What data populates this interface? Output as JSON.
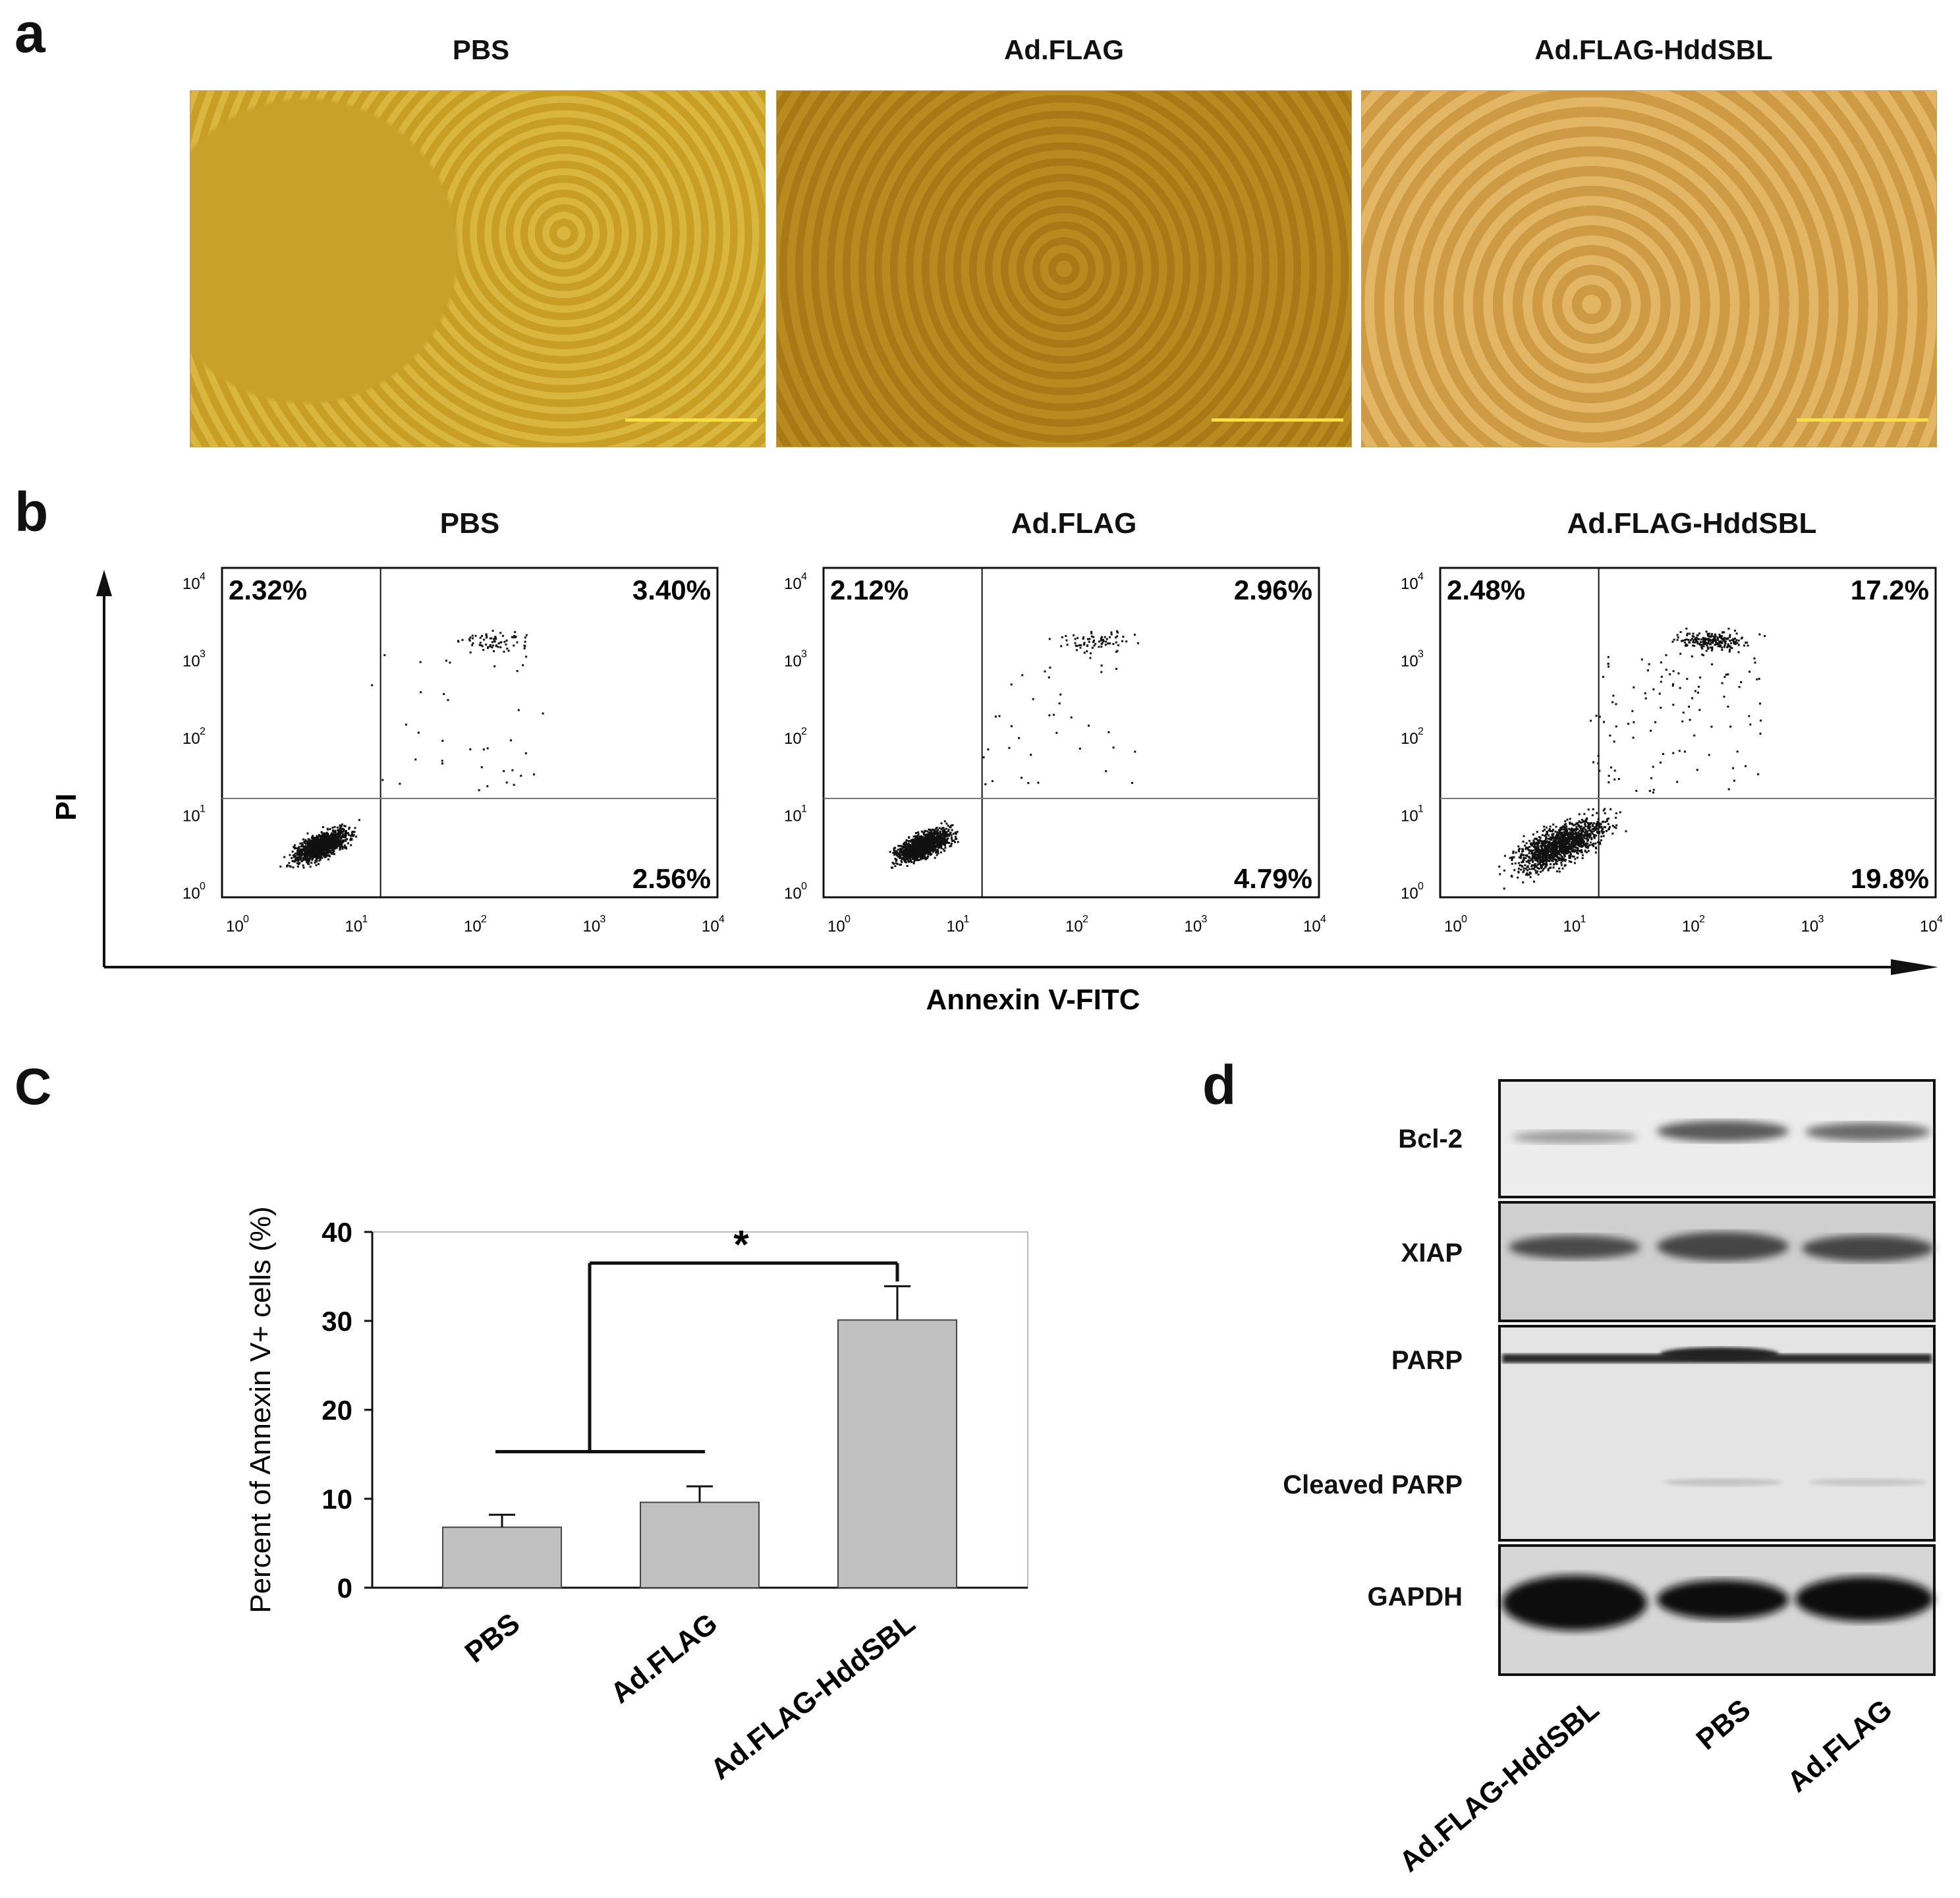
{
  "panel_a": {
    "letter": "a",
    "titles": [
      "PBS",
      "Ad.FLAG",
      "Ad.FLAG-HddSBL"
    ]
  },
  "panel_b": {
    "letter": "b",
    "titles": [
      "PBS",
      "Ad.FLAG",
      "Ad.FLAG-HddSBL"
    ],
    "ylabel": "PI",
    "xlabel": "Annexin V-FITC",
    "tick_labels": [
      "10",
      "10",
      "10",
      "10",
      "10"
    ],
    "tick_exponents": [
      "0",
      "1",
      "2",
      "3",
      "4"
    ],
    "plots": [
      {
        "ul": "2.32%",
        "ur": "3.40%",
        "lr": "2.56%"
      },
      {
        "ul": "2.12%",
        "ur": "2.96%",
        "lr": "4.79%"
      },
      {
        "ul": "2.48%",
        "ur": "17.2%",
        "lr": "19.8%"
      }
    ]
  },
  "chart_data": {
    "type": "bar",
    "title": "",
    "ylabel": "Percent of Annexin V+ cells (%)",
    "xlabel": "",
    "categories": [
      "PBS",
      "Ad.FLAG",
      "Ad.FLAG-HddSBL"
    ],
    "values": [
      6.8,
      9.6,
      30.1
    ],
    "errors": [
      1.4,
      1.8,
      3.8
    ],
    "ylim": [
      0,
      40
    ],
    "yticks": [
      "0",
      "10",
      "20",
      "30",
      "40"
    ],
    "significance": "*",
    "bar_color": "#c0c0c0",
    "grid": false
  },
  "panel_c": {
    "letter": "C"
  },
  "panel_d": {
    "letter": "d",
    "labels": [
      "Bcl-2",
      "XIAP",
      "PARP",
      "Cleaved PARP",
      "GAPDH"
    ],
    "lanes": [
      "Ad.FLAG-HddSBL",
      "PBS",
      "Ad.FLAG"
    ]
  }
}
